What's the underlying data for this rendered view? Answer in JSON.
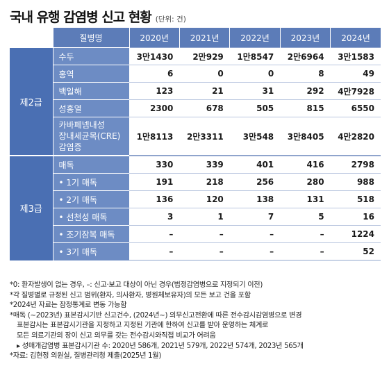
{
  "title": "국내 유행 감염병 신고 현황",
  "unit": "(단위: 건)",
  "header": {
    "name_col": "질병명",
    "years": [
      "2020년",
      "2021년",
      "2022년",
      "2023년",
      "2024년"
    ]
  },
  "groups": [
    {
      "label": "제2급",
      "rows": [
        {
          "name": "수두",
          "values": [
            "3만1430",
            "2만929",
            "1만8547",
            "2만6964",
            "3만1583"
          ]
        },
        {
          "name": "홍역",
          "values": [
            "6",
            "0",
            "0",
            "8",
            "49"
          ]
        },
        {
          "name": "백일해",
          "values": [
            "123",
            "21",
            "31",
            "292",
            "4만7928"
          ]
        },
        {
          "name": "성홍열",
          "values": [
            "2300",
            "678",
            "505",
            "815",
            "6550"
          ]
        },
        {
          "name_lines": [
            "카바페넴내성",
            "장내세균목(CRE)",
            "감염증"
          ],
          "values": [
            "1만8113",
            "2만3311",
            "3만548",
            "3만8405",
            "4만2820"
          ]
        }
      ]
    },
    {
      "label": "제3급",
      "rows": [
        {
          "name": "매독",
          "values": [
            "330",
            "339",
            "401",
            "416",
            "2798"
          ]
        },
        {
          "name": "• 1기 매독",
          "values": [
            "191",
            "218",
            "256",
            "280",
            "988"
          ]
        },
        {
          "name": "• 2기 매독",
          "values": [
            "136",
            "120",
            "138",
            "131",
            "518"
          ]
        },
        {
          "name": "• 선천성 매독",
          "values": [
            "3",
            "1",
            "7",
            "5",
            "16"
          ]
        },
        {
          "name": "• 조기잠복 매독",
          "values": [
            "–",
            "–",
            "–",
            "–",
            "1224"
          ]
        },
        {
          "name": "• 3기 매독",
          "values": [
            "–",
            "–",
            "–",
            "–",
            "52"
          ]
        }
      ]
    }
  ],
  "notes": [
    "*0:  환자발생이 없는 경우,  –: 신고·보고 대상이 아닌 경우(법정감염병으로 지정되기 이전)",
    "*각 질병별로 규정된 신고 범위(환자, 의사환자, 병원체보유자)의 모든 보고 건을 포함",
    "*2024년 자료는 잠정통계로 변동 가능함",
    "*매독 (~2023년) 표본감시기반 신고건수, (2024년~) 의무신고전환에 따른 전수감시감염병으로 변경",
    "표본감시는 표본감시기관을 지정하고 지정된 기관에 한하여 신고를 받아 운영하는 체계로",
    "모든 의료기관의 장이 신고 의무를 갖는 전수감시와직접 비교가 어려움",
    "▸ 성매개감염병 표본감시기관 수: 2020년 586개, 2021년 579개, 2022년 574개, 2023년 565개",
    "*자료: 김현정 의원실, 질병관리청 제출(2025년 1월)"
  ]
}
